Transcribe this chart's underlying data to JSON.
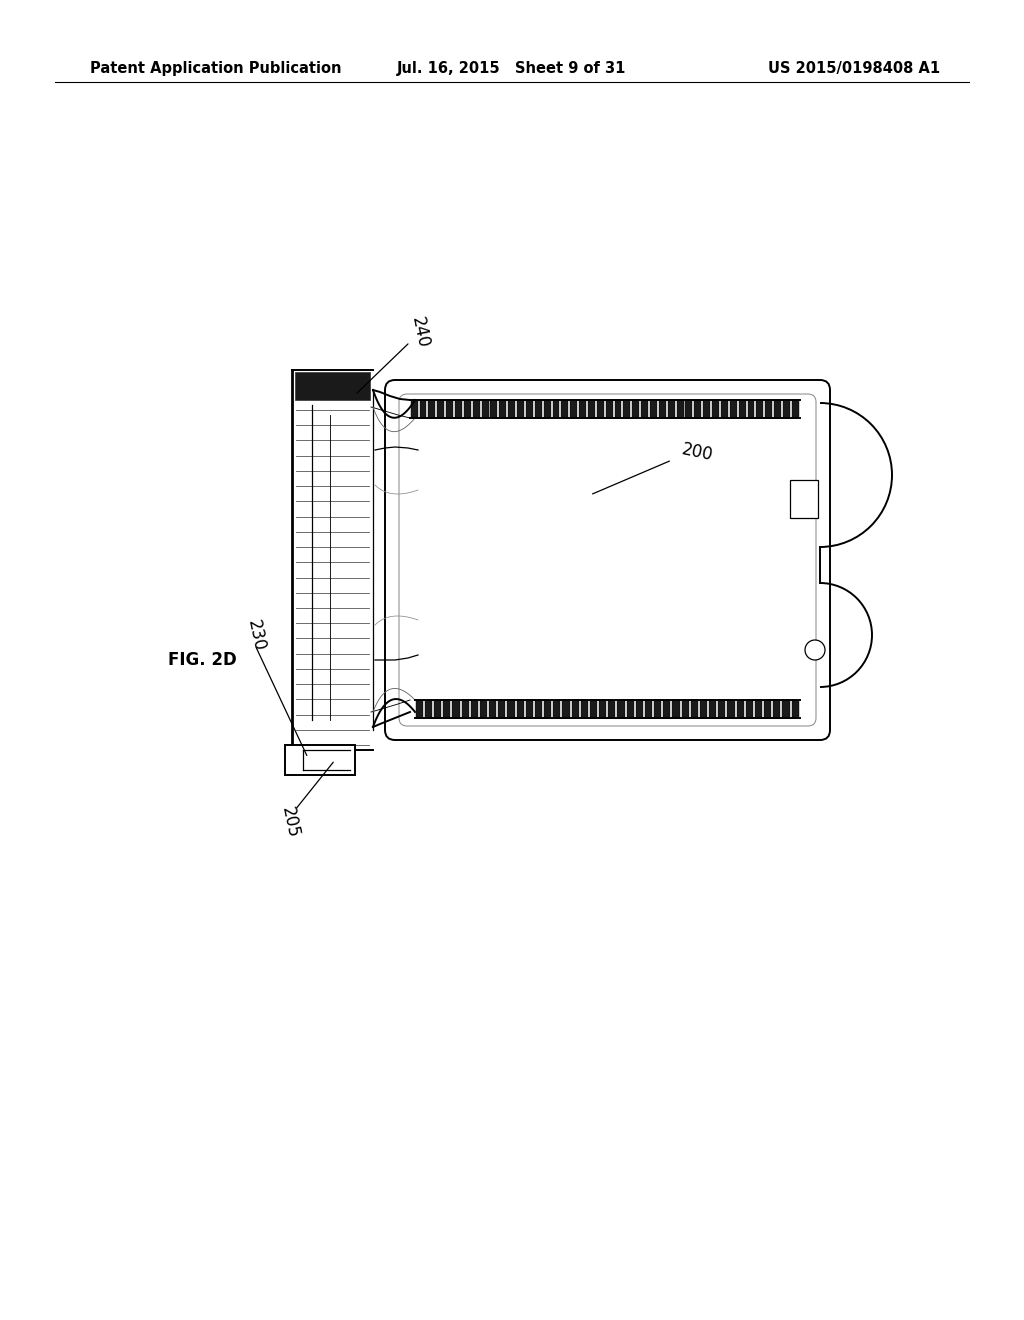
{
  "header_left": "Patent Application Publication",
  "header_mid": "Jul. 16, 2015   Sheet 9 of 31",
  "header_right": "US 2015/0198408 A1",
  "fig_label": "FIG. 2D",
  "background_color": "#ffffff",
  "line_color": "#000000",
  "dark_color": "#1a1a1a",
  "gray_color": "#555555",
  "header_fontsize": 10.5,
  "label_fontsize": 12,
  "fig_label_fontsize": 12
}
